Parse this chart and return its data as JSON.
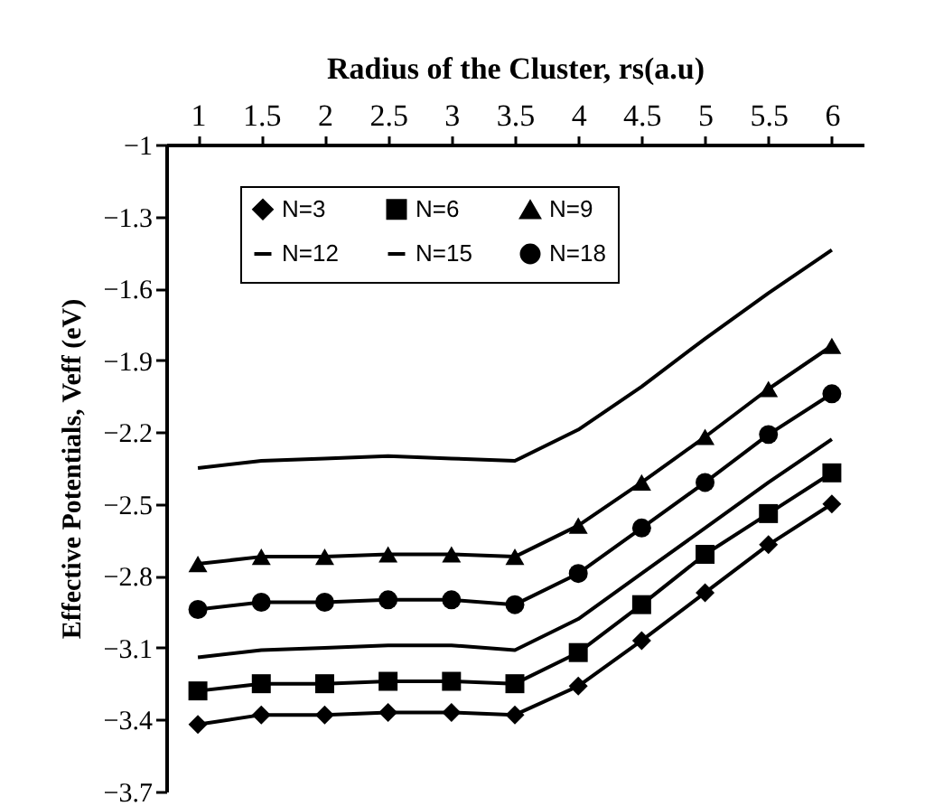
{
  "chart_data": {
    "type": "line",
    "xlabel": "Radius of the Cluster, rs(a.u)",
    "ylabel": "Effective Potentials, Veff (eV)",
    "categories": [
      "1",
      "1.5",
      "2",
      "2.5",
      "3",
      "3.5",
      "4",
      "4.5",
      "5",
      "5.5",
      "6"
    ],
    "ylim": [
      -3.7,
      -1
    ],
    "yticks": [
      -3.7,
      -3.4,
      -3.1,
      -2.8,
      -2.5,
      -2.2,
      -1.9,
      -1.6,
      -1.3,
      -1
    ],
    "grid": false,
    "legend": "top",
    "series": [
      {
        "name": "N=3",
        "color": "#000000",
        "marker": "diamond",
        "values": [
          -3.42,
          -3.38,
          -3.38,
          -3.37,
          -3.37,
          -3.38,
          -3.26,
          -3.07,
          -2.87,
          -2.67,
          -2.5
        ]
      },
      {
        "name": "N=6",
        "color": "#000000",
        "marker": "square",
        "values": [
          -3.28,
          -3.25,
          -3.25,
          -3.24,
          -3.24,
          -3.25,
          -3.12,
          -2.92,
          -2.71,
          -2.54,
          -2.37
        ]
      },
      {
        "name": "N=9",
        "color": "#000000",
        "marker": "triangle",
        "values": [
          -2.75,
          -2.72,
          -2.72,
          -2.71,
          -2.71,
          -2.72,
          -2.59,
          -2.41,
          -2.22,
          -2.02,
          -1.84
        ]
      },
      {
        "name": "N=12",
        "color": "#000000",
        "marker": "none",
        "values": [
          -3.14,
          -3.11,
          -3.1,
          -3.09,
          -3.09,
          -3.11,
          -2.98,
          -2.79,
          -2.6,
          -2.41,
          -2.23
        ]
      },
      {
        "name": "N=15",
        "color": "#000000",
        "marker": "none",
        "values": [
          -2.35,
          -2.32,
          -2.31,
          -2.3,
          -2.31,
          -2.32,
          -2.19,
          -2.01,
          -1.81,
          -1.62,
          -1.44
        ]
      },
      {
        "name": "N=18",
        "color": "#000000",
        "marker": "circle",
        "values": [
          -2.94,
          -2.91,
          -2.91,
          -2.9,
          -2.9,
          -2.92,
          -2.79,
          -2.6,
          -2.41,
          -2.21,
          -2.04
        ]
      }
    ]
  }
}
